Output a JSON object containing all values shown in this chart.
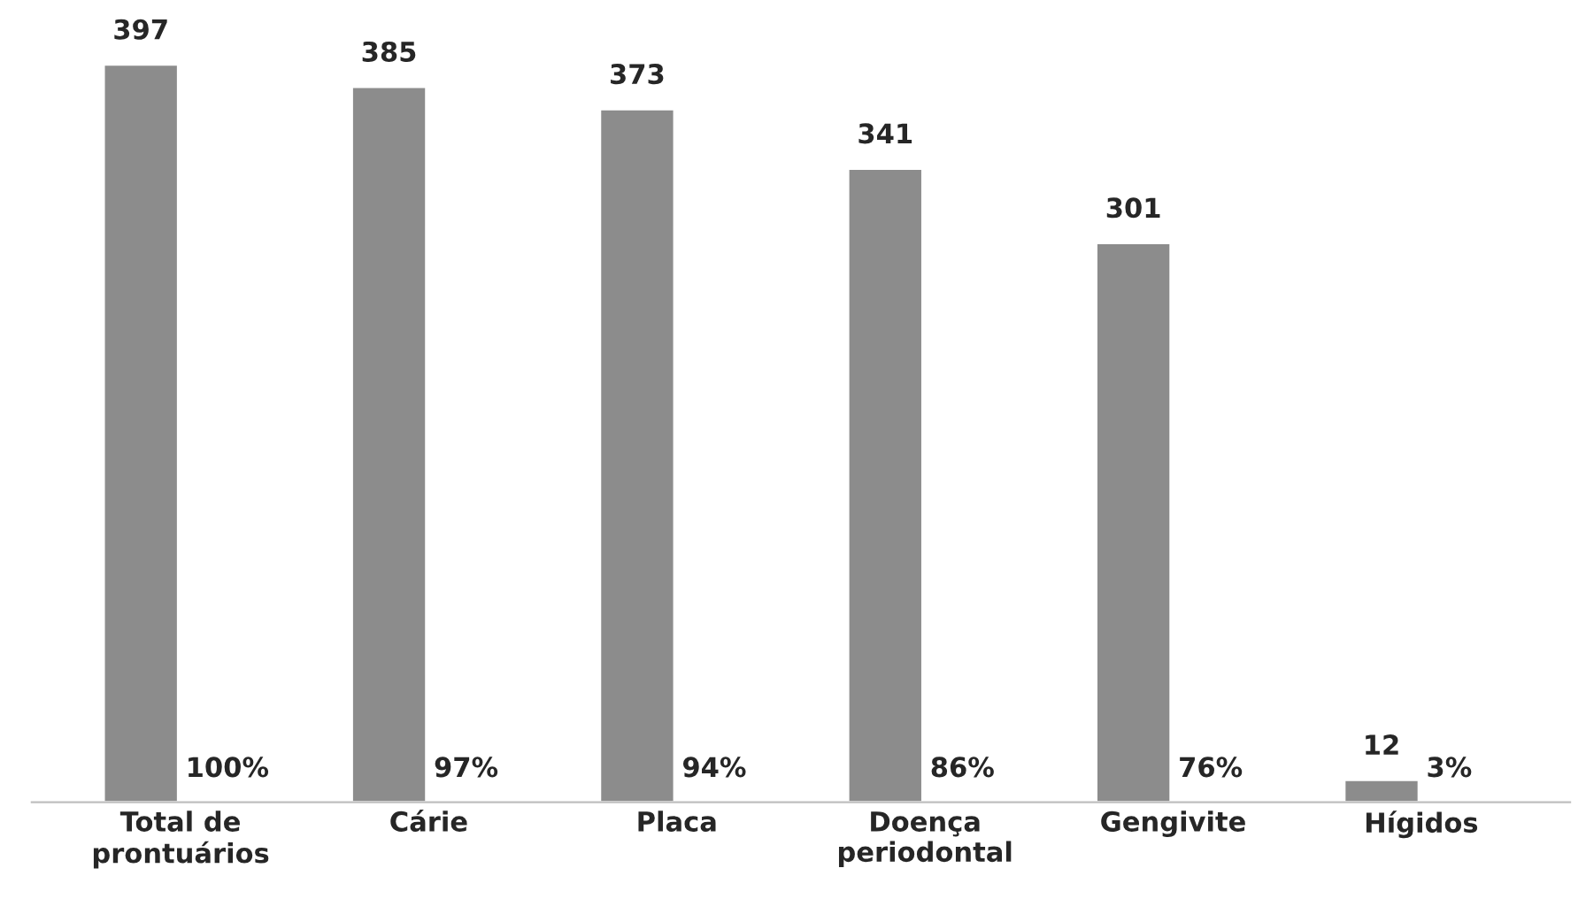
{
  "chart_data": {
    "type": "bar",
    "categories": [
      "Total de\nprontuários",
      "Cárie",
      "Placa",
      "Doença\nperiodontal",
      "Gengivite",
      "Hígidos"
    ],
    "values": [
      397,
      385,
      373,
      341,
      301,
      12
    ],
    "color": "#8c8c8c",
    "data_labels": true,
    "grid": false,
    "legend": false,
    "tick_labels": "x",
    "annotations": [
      {
        "text": "100%",
        "x": "Total de\nprontuários",
        "y": 0
      },
      {
        "text": "97%",
        "x": "Cárie",
        "y": 0
      },
      {
        "text": "94%",
        "x": "Placa",
        "y": 0
      },
      {
        "text": "86%",
        "x": "Doença\nperiodontal",
        "y": 0
      },
      {
        "text": "76%",
        "x": "Gengivite",
        "y": 0
      },
      {
        "text": "3%",
        "x": "Hígidos",
        "y": 0
      }
    ]
  }
}
